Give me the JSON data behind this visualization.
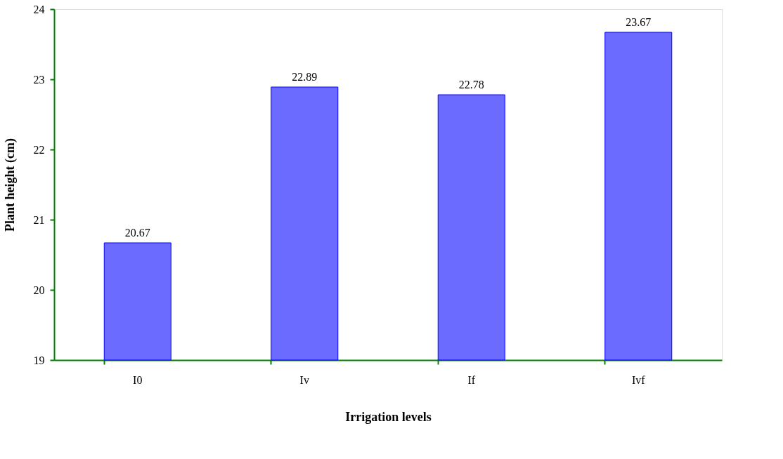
{
  "chart_data": {
    "type": "bar",
    "xlabel": "Irrigation levels",
    "ylabel": "Plant height (cm)",
    "categories": [
      "I0",
      "Iv",
      "If",
      "Ivf"
    ],
    "values": [
      20.67,
      22.89,
      22.78,
      23.67
    ],
    "color": "#6b6bff",
    "ylim": [
      19,
      24
    ],
    "yticks": [
      19,
      20,
      21,
      22,
      23,
      24
    ],
    "data_labels": true,
    "grid": false
  }
}
